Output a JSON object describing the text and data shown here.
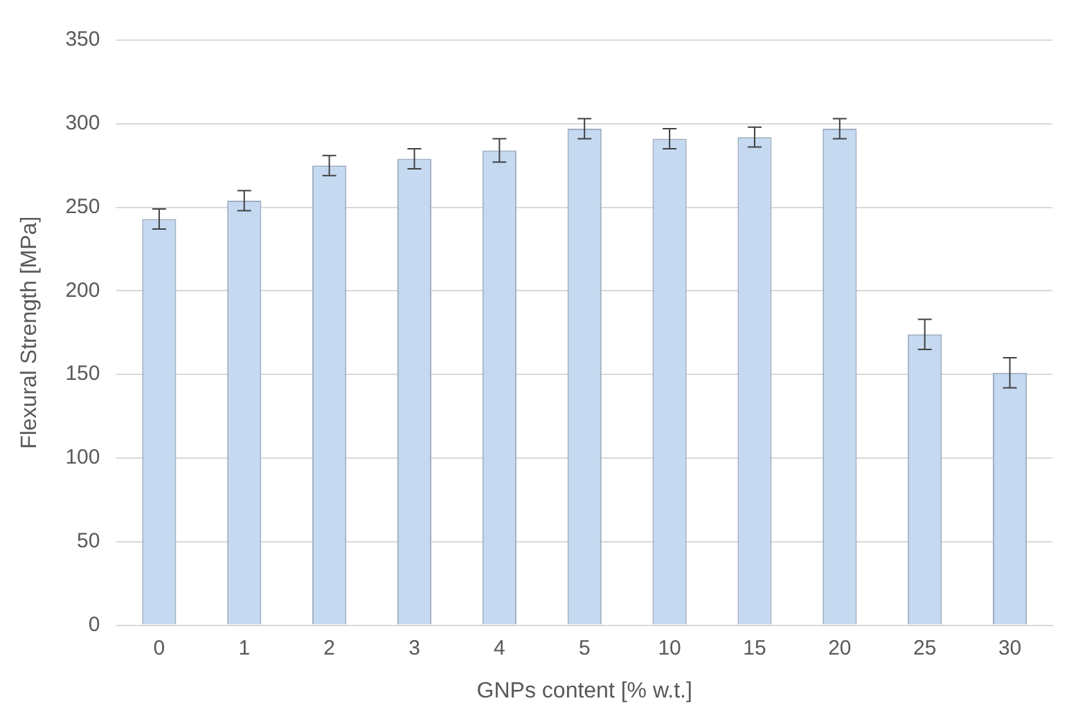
{
  "chart_data": {
    "type": "bar",
    "xlabel": "GNPs content [% w.t.]",
    "ylabel": "Flexural Strength [MPa]",
    "categories": [
      "0",
      "1",
      "2",
      "3",
      "4",
      "5",
      "10",
      "15",
      "20",
      "25",
      "30"
    ],
    "values": [
      243,
      254,
      275,
      279,
      284,
      297,
      291,
      292,
      297,
      174,
      151
    ],
    "errors": [
      6,
      6,
      6,
      6,
      7,
      6,
      6,
      6,
      6,
      9,
      9
    ],
    "color": "#c5d9f1",
    "ylim": [
      0,
      350
    ],
    "yticks": [
      0,
      50,
      100,
      150,
      200,
      250,
      300,
      350
    ],
    "grid": "y",
    "legend": false
  }
}
